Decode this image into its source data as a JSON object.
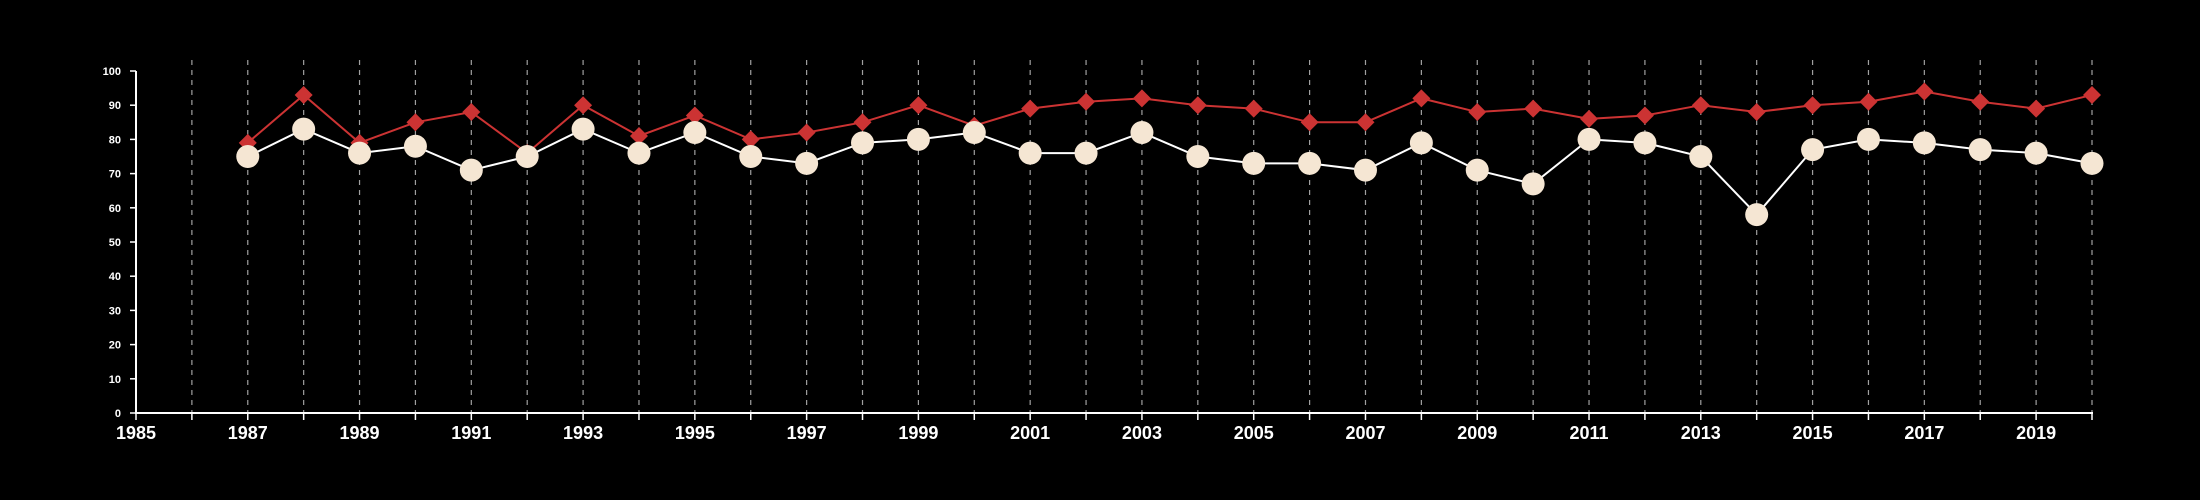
{
  "chart_data": {
    "type": "line",
    "x": [
      1987,
      1988,
      1989,
      1990,
      1991,
      1992,
      1993,
      1994,
      1995,
      1996,
      1997,
      1998,
      1999,
      2000,
      2001,
      2002,
      2003,
      2004,
      2005,
      2006,
      2007,
      2008,
      2009,
      2010,
      2011,
      2012,
      2013,
      2014,
      2015,
      2016,
      2017,
      2018,
      2019,
      2020
    ],
    "xlim": [
      1985,
      2020
    ],
    "ylim": [
      0,
      100
    ],
    "x_tick_labels": [
      "1985",
      "1987",
      "1989",
      "1991",
      "1993",
      "1995",
      "1997",
      "1999",
      "2001",
      "2003",
      "2005",
      "2007",
      "2009",
      "2011",
      "2013",
      "2015",
      "2017",
      "2019"
    ],
    "y_tick_labels": [
      "0",
      "10",
      "20",
      "30",
      "40",
      "50",
      "60",
      "70",
      "80",
      "90",
      "100"
    ],
    "vertical_gridlines": "dashed, every year",
    "series": [
      {
        "marker": "diamond",
        "color": "#cc3333",
        "values": [
          79,
          93,
          79,
          85,
          88,
          76,
          90,
          81,
          87,
          80,
          82,
          85,
          90,
          84,
          89,
          91,
          92,
          90,
          89,
          85,
          85,
          92,
          88,
          89,
          86,
          87,
          90,
          88,
          90,
          91,
          94,
          91,
          89,
          93
        ]
      },
      {
        "marker": "circle",
        "color": "#f5e6d3",
        "line_color": "#ffffff",
        "values": [
          75,
          83,
          76,
          78,
          71,
          75,
          83,
          76,
          82,
          75,
          73,
          79,
          80,
          82,
          76,
          76,
          82,
          75,
          73,
          73,
          71,
          79,
          71,
          67,
          80,
          79,
          75,
          58,
          77,
          80,
          79,
          77,
          76,
          73
        ]
      }
    ],
    "title": "",
    "xlabel": "",
    "ylabel": ""
  }
}
